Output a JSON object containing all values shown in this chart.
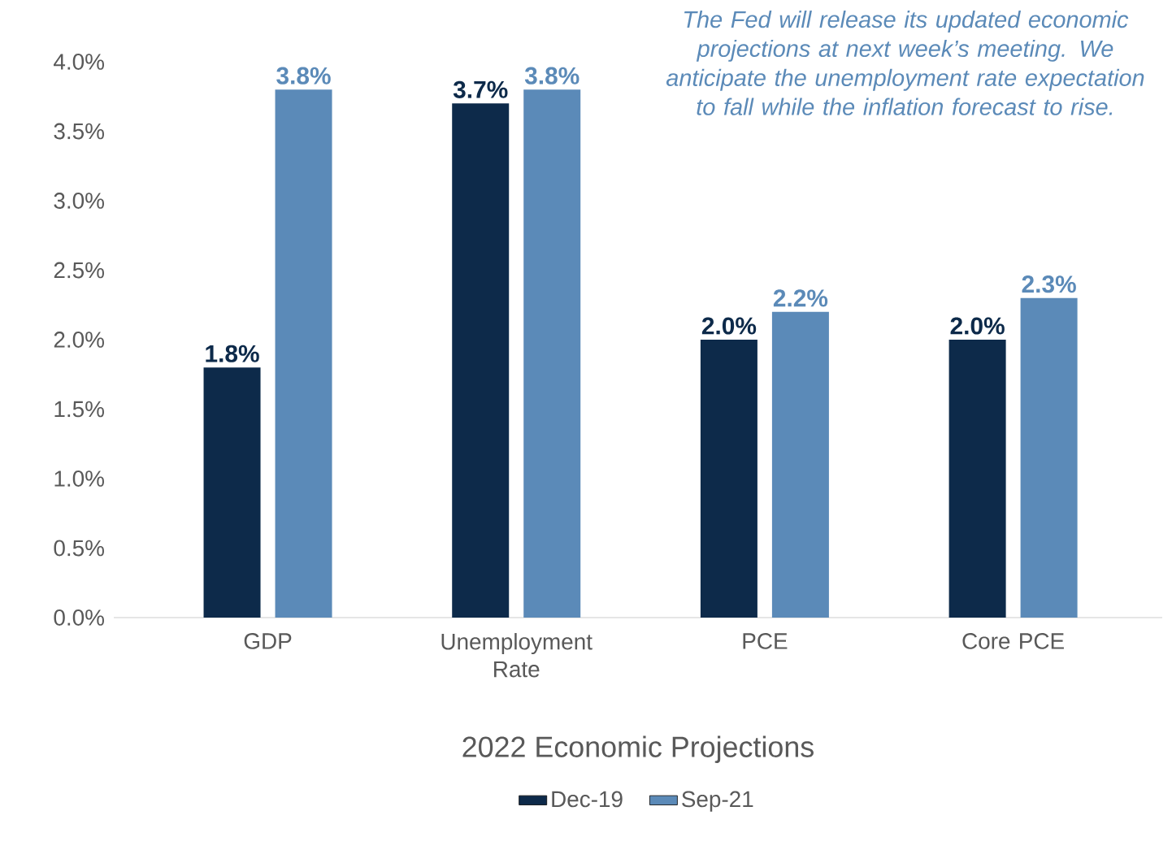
{
  "chart_data": {
    "type": "bar",
    "title": "2022 Economic Projections",
    "categories": [
      "GDP",
      "Unemployment Rate",
      "PCE",
      "Core PCE"
    ],
    "series": [
      {
        "name": "Dec-19",
        "color": "#0d2a4a",
        "values": [
          1.8,
          3.7,
          2.0,
          2.0
        ],
        "value_labels": [
          "1.8%",
          "3.7%",
          "2.0%",
          "2.0%"
        ]
      },
      {
        "name": "Sep-21",
        "color": "#5b8ab8",
        "values": [
          3.8,
          3.8,
          2.2,
          2.3
        ],
        "value_labels": [
          "3.8%",
          "3.8%",
          "2.2%",
          "2.3%"
        ]
      }
    ],
    "ylim": [
      0,
      4
    ],
    "yticks": [
      {
        "value": 0,
        "label": "0.0%"
      },
      {
        "value": 0.5,
        "label": "0.5%"
      },
      {
        "value": 1,
        "label": "1.0%"
      },
      {
        "value": 1.5,
        "label": "1.5%"
      },
      {
        "value": 2,
        "label": "2.0%"
      },
      {
        "value": 2.5,
        "label": "2.5%"
      },
      {
        "value": 3,
        "label": "3.0%"
      },
      {
        "value": 3.5,
        "label": "3.5%"
      },
      {
        "value": 4,
        "label": "4.0%"
      }
    ],
    "annotations": [
      "The Fed will release its updated economic projections at next week’s meeting. We anticipate the unemployment rate expectation to fall while the inflation forecast to rise."
    ],
    "legend": "bottom",
    "grid": false
  }
}
